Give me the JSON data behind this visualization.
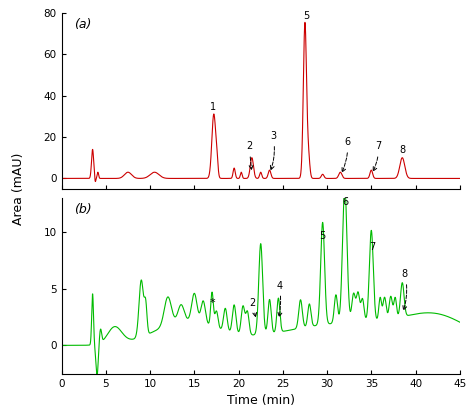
{
  "panel_a": {
    "color": "#cc0000",
    "ylim": [
      -5,
      80
    ],
    "yticks": [
      0,
      20,
      40,
      60,
      80
    ],
    "label": "(a)"
  },
  "panel_b": {
    "color": "#00bb00",
    "ylim": [
      -2.5,
      13
    ],
    "yticks": [
      0,
      5,
      10
    ],
    "label": "(b)"
  },
  "xlim": [
    0,
    45
  ],
  "xticks": [
    0,
    5,
    10,
    15,
    20,
    25,
    30,
    35,
    40,
    45
  ],
  "xlabel": "Time (min)",
  "ylabel": "Area (mAU)"
}
